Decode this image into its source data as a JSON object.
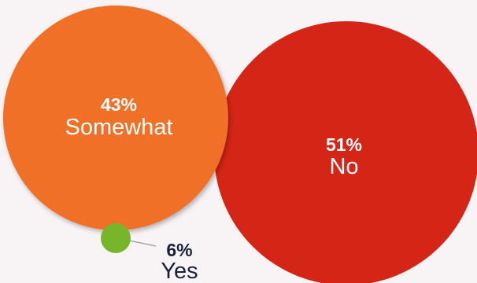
{
  "chart_data": {
    "type": "bubble",
    "title": "",
    "categories": [
      "Somewhat",
      "No",
      "Yes"
    ],
    "values": [
      43,
      51,
      6
    ],
    "unit": "%",
    "labels": [
      {
        "category": "Somewhat",
        "value_text": "43%",
        "color": "#ef7025",
        "text_color": "#ffffff"
      },
      {
        "category": "No",
        "value_text": "51%",
        "color": "#d52516",
        "text_color": "#ffffff"
      },
      {
        "category": "Yes",
        "value_text": "6%",
        "color": "#77b52a",
        "text_color": "#1a1f3d"
      }
    ],
    "legend": "none",
    "grid": false
  }
}
